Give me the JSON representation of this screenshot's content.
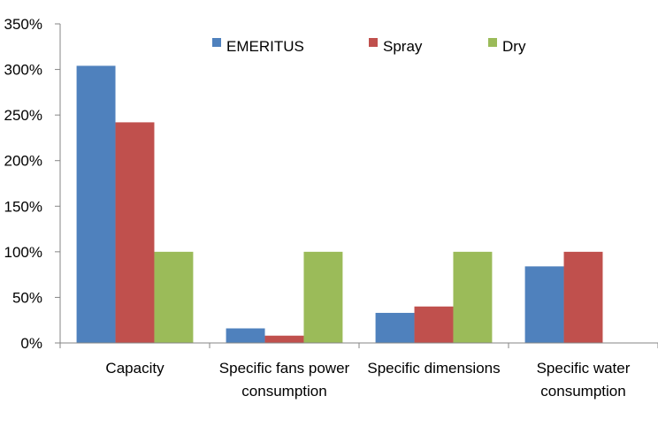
{
  "chart_data": {
    "type": "bar",
    "title": "",
    "xlabel": "",
    "ylabel": "",
    "categories": [
      [
        "Capacity"
      ],
      [
        "Specific fans power",
        "consumption"
      ],
      [
        "Specific dimensions"
      ],
      [
        "Specific water",
        "consumption"
      ]
    ],
    "series": [
      {
        "name": "EMERITUS",
        "color": "#4F81BD",
        "values": [
          304,
          16,
          33,
          84
        ]
      },
      {
        "name": "Spray",
        "color": "#C0504D",
        "values": [
          242,
          8,
          40,
          100
        ]
      },
      {
        "name": "Dry",
        "color": "#9BBB59",
        "values": [
          100,
          100,
          100,
          0
        ]
      }
    ],
    "ylim": [
      0,
      350
    ],
    "y_ticks": [
      0,
      50,
      100,
      150,
      200,
      250,
      300,
      350
    ],
    "y_tick_format": "percent",
    "grid": false,
    "legend": "top-center"
  }
}
